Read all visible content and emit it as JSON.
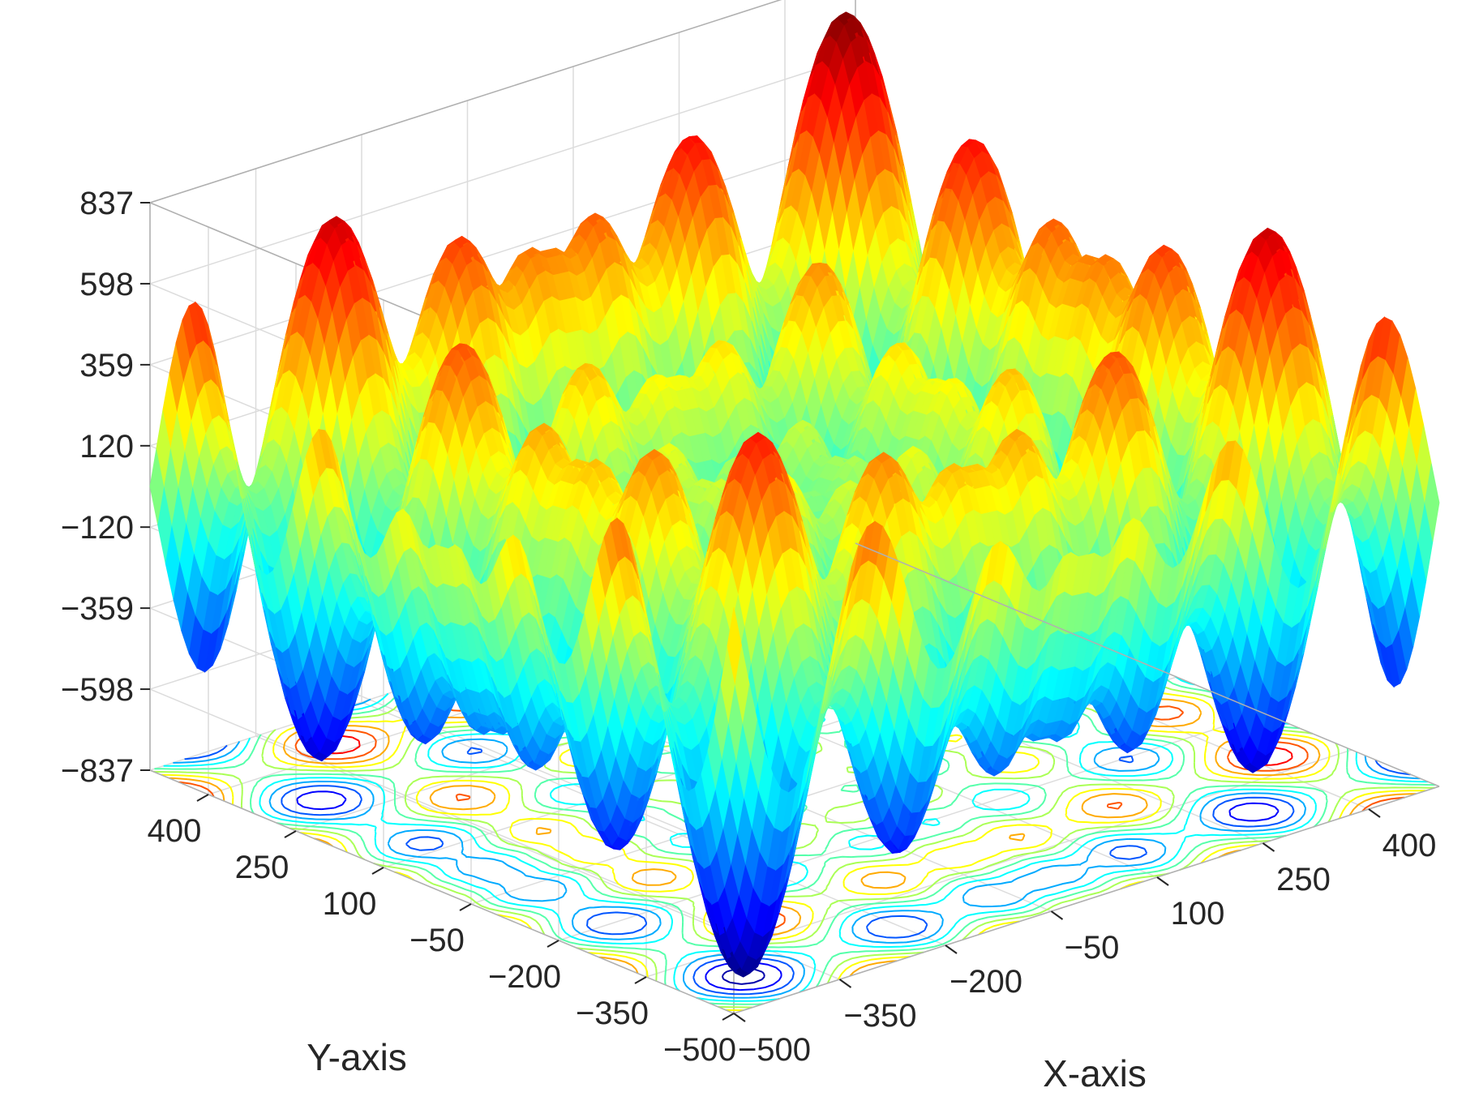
{
  "chart_data": {
    "type": "surface3d",
    "title": "",
    "xlabel": "X-axis",
    "ylabel": "Y-axis",
    "zlabel": "",
    "xlim": [
      -500,
      500
    ],
    "ylim": [
      -500,
      500
    ],
    "zlim": [
      -837,
      837
    ],
    "x_ticks": [
      -500,
      -350,
      -200,
      -50,
      100,
      250,
      400
    ],
    "y_ticks": [
      -500,
      -350,
      -200,
      -50,
      100,
      250,
      400
    ],
    "z_ticks": [
      -837,
      -598,
      -359,
      -120,
      120,
      359,
      598,
      837
    ],
    "z_tick_labels": [
      "−837",
      "−598",
      "−359",
      "−120",
      "120",
      "359",
      "598",
      "837"
    ],
    "x_tick_labels": [
      "−500",
      "−350",
      "−200",
      "−50",
      "100",
      "250",
      "400"
    ],
    "y_tick_labels": [
      "−500",
      "−350",
      "−200",
      "−50",
      "100",
      "250",
      "400"
    ],
    "function": "z = x*sin(sqrt(|x|)) + y*sin(sqrt(|y|))  (Schwefel-type surface)",
    "colormap": "jet",
    "contour_projection": "bottom plane",
    "grid": true,
    "box": true
  }
}
